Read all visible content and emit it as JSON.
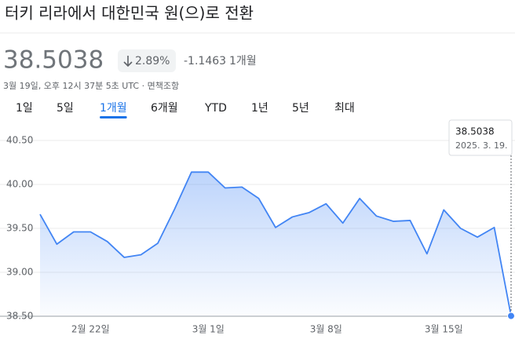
{
  "header": {
    "title": "터키 리라에서 대한민국 원(으)로 전환",
    "price": "38.5038",
    "change_percent": "2.89%",
    "change": "-1.1463",
    "period": "1개월",
    "meta": "3월 19일, 오후 12시 37분 5초 UTC · 면책조항"
  },
  "tabs": {
    "items": [
      "1일",
      "5일",
      "1개월",
      "6개월",
      "YTD",
      "1년",
      "5년",
      "최대"
    ],
    "selected": 2
  },
  "chart_data": {
    "type": "area",
    "color": "#4285f4",
    "categories": [
      null,
      null,
      null,
      "2월 22일",
      null,
      null,
      null,
      null,
      null,
      null,
      "3월 1일",
      null,
      null,
      null,
      null,
      null,
      null,
      "3월 8일",
      null,
      null,
      null,
      null,
      null,
      null,
      "3월 15일",
      null,
      null,
      null,
      null
    ],
    "values": [
      39.66,
      39.32,
      39.46,
      39.46,
      39.35,
      39.17,
      39.2,
      39.33,
      39.72,
      40.14,
      40.14,
      39.96,
      39.97,
      39.84,
      39.51,
      39.63,
      39.68,
      39.78,
      39.56,
      39.84,
      39.64,
      39.58,
      39.59,
      39.21,
      39.71,
      39.5,
      39.4,
      39.51,
      38.5038
    ],
    "ylim": [
      38.5,
      40.5
    ],
    "yticks": [
      {
        "value": 40.5,
        "label": "40.50"
      },
      {
        "value": 40,
        "label": "40.00"
      },
      {
        "value": 39.5,
        "label": "39.50"
      },
      {
        "value": 39,
        "label": "39.00"
      },
      {
        "value": 38.5,
        "label": "38.50"
      }
    ],
    "grid": true,
    "tooltip_date": "2025. 3. 19."
  }
}
